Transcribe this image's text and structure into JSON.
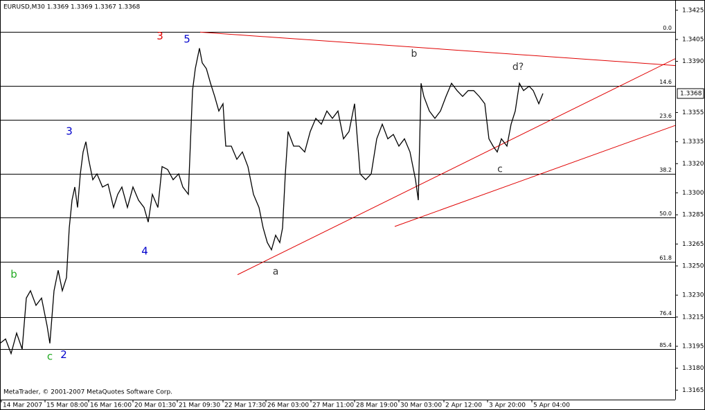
{
  "chart_data": {
    "type": "line",
    "title": "EURUSD,M30  1.3369 1.3369 1.3367 1.3368",
    "watermark": "MetaTrader, © 2001-2007 MetaQuotes Software Corp.",
    "color": "#000000",
    "x": [
      0,
      8,
      16,
      24,
      32,
      38,
      44,
      52,
      60,
      68,
      72,
      78,
      84,
      90,
      96,
      100,
      104,
      108,
      112,
      116,
      120,
      124,
      128,
      134,
      140,
      148,
      156,
      164,
      170,
      176,
      184,
      192,
      200,
      208,
      214,
      220,
      228,
      234,
      242,
      250,
      258,
      264,
      272,
      278,
      282,
      288,
      292,
      298,
      304,
      310,
      316,
      322,
      326,
      334,
      342,
      350,
      358,
      366,
      374,
      380,
      386,
      392,
      398,
      404,
      408,
      412,
      416,
      424,
      432,
      440,
      448,
      456,
      464,
      472,
      480,
      488,
      496,
      504,
      512,
      520,
      528,
      536,
      544,
      552,
      560,
      568,
      576,
      584,
      592,
      600,
      604,
      608,
      612,
      620,
      628,
      636,
      644,
      652,
      660,
      668,
      676,
      684,
      692,
      700,
      706,
      712,
      718,
      724,
      732,
      738,
      744,
      750,
      756,
      764,
      770,
      778,
      784
    ],
    "values": [
      1.3197,
      1.32,
      1.319,
      1.3204,
      1.3193,
      1.3228,
      1.3233,
      1.3223,
      1.3228,
      1.3209,
      1.3197,
      1.3233,
      1.3247,
      1.3233,
      1.3242,
      1.3276,
      1.3295,
      1.3304,
      1.329,
      1.3313,
      1.3328,
      1.3335,
      1.3323,
      1.3309,
      1.3313,
      1.3304,
      1.3306,
      1.329,
      1.3299,
      1.3304,
      1.329,
      1.3304,
      1.3295,
      1.329,
      1.328,
      1.3299,
      1.329,
      1.3318,
      1.3316,
      1.3309,
      1.3313,
      1.3304,
      1.3299,
      1.337,
      1.3385,
      1.3399,
      1.3389,
      1.3385,
      1.3375,
      1.3366,
      1.3356,
      1.3361,
      1.3332,
      1.3332,
      1.3323,
      1.3328,
      1.3318,
      1.3299,
      1.329,
      1.3276,
      1.3266,
      1.3261,
      1.3271,
      1.3266,
      1.3276,
      1.3313,
      1.3342,
      1.3332,
      1.3332,
      1.3328,
      1.3342,
      1.3351,
      1.3347,
      1.3356,
      1.3351,
      1.3356,
      1.3337,
      1.3342,
      1.3361,
      1.3313,
      1.3309,
      1.3313,
      1.3337,
      1.3347,
      1.3337,
      1.334,
      1.3332,
      1.3337,
      1.3328,
      1.3309,
      1.3295,
      1.3375,
      1.3366,
      1.3356,
      1.3351,
      1.3356,
      1.3366,
      1.3375,
      1.337,
      1.3366,
      1.337,
      1.337,
      1.3366,
      1.3361,
      1.3337,
      1.3332,
      1.3328,
      1.3337,
      1.3332,
      1.3347,
      1.3356,
      1.3375,
      1.337,
      1.3373,
      1.337,
      1.3361,
      1.3368
    ],
    "last_price": 1.3368,
    "xlim": [
      0,
      975
    ],
    "xticks": [
      {
        "value": 2,
        "label": "14 Mar 2007"
      },
      {
        "value": 65,
        "label": "15 Mar 08:00"
      },
      {
        "value": 128,
        "label": "16 Mar 16:00"
      },
      {
        "value": 192,
        "label": "20 Mar 01:30"
      },
      {
        "value": 256,
        "label": "21 Mar 09:30"
      },
      {
        "value": 322,
        "label": "22 Mar 17:30"
      },
      {
        "value": 384,
        "label": "26 Mar 03:00"
      },
      {
        "value": 449,
        "label": "27 Mar 11:00"
      },
      {
        "value": 512,
        "label": "28 Mar 19:00"
      },
      {
        "value": 576,
        "label": "30 Mar 03:00"
      },
      {
        "value": 641,
        "label": "2 Apr 12:00"
      },
      {
        "value": 704,
        "label": "3 Apr 20:00"
      },
      {
        "value": 768,
        "label": "5 Apr 04:00"
      }
    ],
    "ylim": [
      1.31585,
      1.3432
    ],
    "yticks": [
      1.3425,
      1.3405,
      {
        "value": 1.339,
        "label": "1.3390"
      },
      1.3355,
      1.3335,
      {
        "value": 1.332,
        "label": "1.3320"
      },
      {
        "value": 1.33,
        "label": "1.3300"
      },
      1.3285,
      1.3265,
      {
        "value": 1.325,
        "label": "1.3250"
      },
      {
        "value": 1.323,
        "label": "1.3230"
      },
      1.3215,
      1.3195,
      {
        "value": 1.318,
        "label": "1.3180"
      },
      1.3165
    ],
    "fibo": [
      {
        "label": "0.0",
        "value": 1.341
      },
      {
        "label": "14.6",
        "value": 1.3373
      },
      {
        "label": "23.6",
        "value": 1.335
      },
      {
        "label": "38.2",
        "value": 1.3313
      },
      {
        "label": "50.0",
        "value": 1.3283
      },
      {
        "label": "61.8",
        "value": 1.3253
      },
      {
        "label": "76.4",
        "value": 1.3215
      },
      {
        "label": "85.4",
        "value": 1.3193
      }
    ],
    "trendline_color": "#e00000",
    "trendlines": [
      {
        "x": [
          289,
          980
        ],
        "y": [
          1.341,
          1.3387
        ]
      },
      {
        "x": [
          343,
          980
        ],
        "y": [
          1.3244,
          1.3393
        ]
      },
      {
        "x": [
          570,
          980
        ],
        "y": [
          1.3277,
          1.3347
        ]
      }
    ],
    "annotations": [
      {
        "text": "3",
        "color": "#e00000",
        "x": 231,
        "y": 1.3407
      },
      {
        "text": "5",
        "color": "#0000cc",
        "x": 270,
        "y": 1.3405
      },
      {
        "text": "3",
        "color": "#0000cc",
        "x": 100,
        "y": 1.3342
      },
      {
        "text": "4",
        "color": "#0000cc",
        "x": 209,
        "y": 1.326
      },
      {
        "text": "2",
        "color": "#0000cc",
        "x": 92,
        "y": 1.3189
      },
      {
        "text": "b",
        "color": "#22aa22",
        "x": 20,
        "y": 1.3244
      },
      {
        "text": "c",
        "color": "#22aa22",
        "x": 72,
        "y": 1.3188
      },
      {
        "text": "a",
        "color": "#333333",
        "x": 398,
        "y": 1.3246
      },
      {
        "text": "b",
        "color": "#333333",
        "x": 598,
        "y": 1.3395
      },
      {
        "text": "c",
        "color": "#333333",
        "x": 722,
        "y": 1.3316
      },
      {
        "text": "d?",
        "color": "#333333",
        "x": 748,
        "y": 1.3386
      }
    ]
  }
}
